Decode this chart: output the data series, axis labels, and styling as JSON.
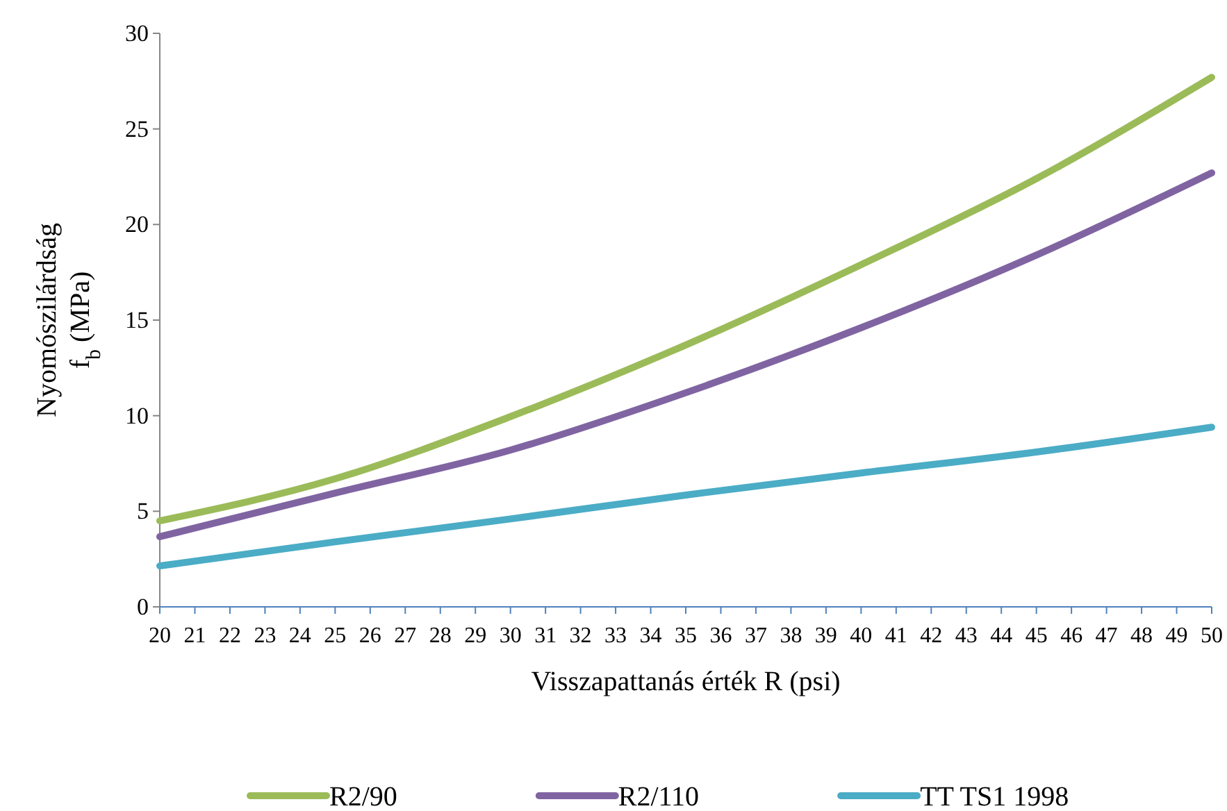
{
  "chart_data": {
    "type": "line",
    "xlabel": "Visszapattanás érték R (psi)",
    "ylabel": "Nyomószilárdság\nf$_{b}$ (MPa)",
    "x": [
      20,
      25,
      30,
      35,
      40,
      45,
      50
    ],
    "series": [
      {
        "name": "R2/90",
        "color": "#9bbb59",
        "values": [
          4.5,
          6.7,
          9.95,
          13.7,
          17.9,
          22.4,
          27.7
        ]
      },
      {
        "name": "R2/110",
        "color": "#8064a2",
        "values": [
          3.67,
          5.95,
          8.2,
          11.2,
          14.6,
          18.4,
          22.7
        ]
      },
      {
        "name": "TT TS1 1998",
        "color": "#4bacc6",
        "values": [
          2.14,
          3.4,
          4.6,
          5.85,
          7.0,
          8.1,
          9.4
        ]
      }
    ],
    "xlim": [
      20,
      50
    ],
    "xticks": [
      20,
      21,
      22,
      23,
      24,
      25,
      26,
      27,
      28,
      29,
      30,
      31,
      32,
      33,
      34,
      35,
      36,
      37,
      38,
      39,
      40,
      41,
      42,
      43,
      44,
      45,
      46,
      47,
      48,
      49,
      50
    ],
    "ylim": [
      0,
      30
    ],
    "yticks": [
      0,
      5,
      10,
      15,
      20,
      25,
      30
    ],
    "grid": false,
    "legend": "bottom",
    "marker": "none",
    "line_style": "solid"
  }
}
